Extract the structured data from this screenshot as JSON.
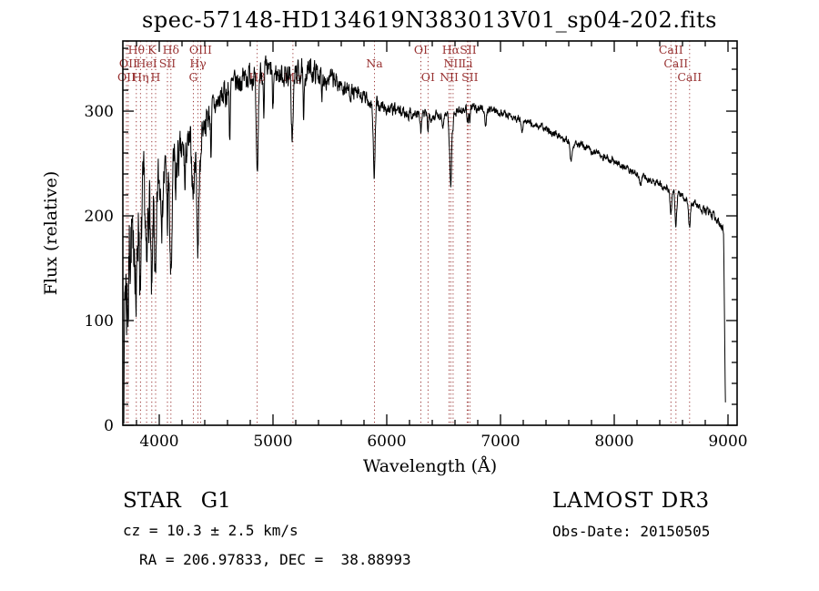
{
  "title": "spec-57148-HD134619N383013V01_sp04-202.fits",
  "footer": {
    "classification": "STAR   G1",
    "cz": "cz = 10.3 ± 2.5 km/s",
    "radec": "RA = 206.97833, DEC =  38.88993",
    "survey": "LAMOST DR3",
    "obs_date": "Obs-Date: 20150505"
  },
  "chart_data": {
    "type": "line",
    "title": "spec-57148-HD134619N383013V01_sp04-202.fits",
    "xlabel": "Wavelength (Å)",
    "ylabel": "Flux (relative)",
    "xlim": [
      3680,
      9080
    ],
    "ylim": [
      0,
      367
    ],
    "x_start": 3686,
    "x_end": 8980,
    "x_ticks": [
      4000,
      5000,
      6000,
      7000,
      8000,
      9000
    ],
    "y_ticks": [
      0,
      100,
      200,
      300
    ],
    "x_minor_step": 200,
    "y_minor_step": 20,
    "grid": false,
    "legend": "none",
    "line_color": "#000000",
    "marker_color": "#993333",
    "continuum": [
      [
        3686,
        4
      ],
      [
        3690,
        40
      ],
      [
        3696,
        120
      ],
      [
        3705,
        160
      ],
      [
        3725,
        172
      ],
      [
        3760,
        183
      ],
      [
        3800,
        196
      ],
      [
        3850,
        207
      ],
      [
        3900,
        220
      ],
      [
        3950,
        227
      ],
      [
        4000,
        233
      ],
      [
        4060,
        240
      ],
      [
        4120,
        248
      ],
      [
        4180,
        256
      ],
      [
        4240,
        263
      ],
      [
        4300,
        271
      ],
      [
        4360,
        281
      ],
      [
        4420,
        293
      ],
      [
        4480,
        303
      ],
      [
        4540,
        312
      ],
      [
        4600,
        319
      ],
      [
        4660,
        325
      ],
      [
        4720,
        330
      ],
      [
        4780,
        334
      ],
      [
        4840,
        337
      ],
      [
        4900,
        339
      ],
      [
        4960,
        338
      ],
      [
        5020,
        336
      ],
      [
        5080,
        335
      ],
      [
        5140,
        335
      ],
      [
        5200,
        336
      ],
      [
        5260,
        338
      ],
      [
        5320,
        339
      ],
      [
        5380,
        337
      ],
      [
        5440,
        334
      ],
      [
        5500,
        331
      ],
      [
        5560,
        327
      ],
      [
        5620,
        323
      ],
      [
        5680,
        319
      ],
      [
        5740,
        315
      ],
      [
        5800,
        312
      ],
      [
        5860,
        309
      ],
      [
        5920,
        306
      ],
      [
        5980,
        303
      ],
      [
        6050,
        301
      ],
      [
        6150,
        299
      ],
      [
        6250,
        297
      ],
      [
        6350,
        296
      ],
      [
        6450,
        296
      ],
      [
        6550,
        298
      ],
      [
        6650,
        301
      ],
      [
        6750,
        303
      ],
      [
        6850,
        303
      ],
      [
        6950,
        301
      ],
      [
        7050,
        297
      ],
      [
        7150,
        293
      ],
      [
        7250,
        289
      ],
      [
        7350,
        285
      ],
      [
        7450,
        280
      ],
      [
        7550,
        275
      ],
      [
        7650,
        270
      ],
      [
        7750,
        265
      ],
      [
        7850,
        260
      ],
      [
        7950,
        255
      ],
      [
        8050,
        249
      ],
      [
        8150,
        244
      ],
      [
        8250,
        238
      ],
      [
        8350,
        232
      ],
      [
        8450,
        227
      ],
      [
        8550,
        221
      ],
      [
        8650,
        215
      ],
      [
        8750,
        208
      ],
      [
        8850,
        201
      ],
      [
        8900,
        197
      ],
      [
        8940,
        192
      ],
      [
        8962,
        184
      ],
      [
        8970,
        95
      ],
      [
        8976,
        30
      ],
      [
        8980,
        6
      ]
    ],
    "noise_amp": [
      [
        3688,
        40
      ],
      [
        3760,
        36
      ],
      [
        3850,
        30
      ],
      [
        3950,
        25
      ],
      [
        4050,
        20
      ],
      [
        4200,
        15
      ],
      [
        4400,
        11
      ],
      [
        4700,
        10
      ],
      [
        5000,
        9
      ],
      [
        5300,
        9
      ],
      [
        5600,
        7
      ],
      [
        5900,
        5.5
      ],
      [
        6200,
        4.5
      ],
      [
        6600,
        3.5
      ],
      [
        7000,
        3
      ],
      [
        7600,
        2.8
      ],
      [
        8200,
        2.8
      ],
      [
        8800,
        3.2
      ],
      [
        8980,
        3.5
      ]
    ],
    "absorption_lines": [
      [
        3712,
        45,
        5
      ],
      [
        3727,
        55,
        5
      ],
      [
        3770,
        60,
        4
      ],
      [
        3798,
        85,
        6
      ],
      [
        3835,
        90,
        6
      ],
      [
        3889,
        85,
        7
      ],
      [
        3934,
        115,
        8
      ],
      [
        3968,
        105,
        8
      ],
      [
        4026,
        40,
        4
      ],
      [
        4072,
        45,
        5
      ],
      [
        4102,
        110,
        9
      ],
      [
        4144,
        35,
        4
      ],
      [
        4227,
        40,
        4
      ],
      [
        4300,
        50,
        10
      ],
      [
        4340,
        110,
        9
      ],
      [
        4363,
        35,
        5
      ],
      [
        4455,
        35,
        4
      ],
      [
        4620,
        45,
        4
      ],
      [
        4861,
        105,
        9
      ],
      [
        4920,
        55,
        4
      ],
      [
        5000,
        45,
        4
      ],
      [
        5170,
        60,
        9
      ],
      [
        5270,
        55,
        5
      ],
      [
        5430,
        30,
        4
      ],
      [
        5890,
        70,
        8
      ],
      [
        6300,
        18,
        5
      ],
      [
        6363,
        12,
        5
      ],
      [
        6495,
        15,
        4
      ],
      [
        6548,
        14,
        4
      ],
      [
        6563,
        70,
        8
      ],
      [
        6583,
        14,
        4
      ],
      [
        6707,
        10,
        4
      ],
      [
        6716,
        12,
        4
      ],
      [
        6731,
        12,
        4
      ],
      [
        6870,
        18,
        7
      ],
      [
        7190,
        12,
        8
      ],
      [
        7620,
        18,
        9
      ],
      [
        8230,
        12,
        8
      ],
      [
        8498,
        26,
        7
      ],
      [
        8542,
        30,
        7
      ],
      [
        8662,
        26,
        7
      ]
    ],
    "line_markers": [
      {
        "label": "Hθ",
        "wavelength": 3798,
        "row": 1
      },
      {
        "label": "K",
        "wavelength": 3934,
        "row": 1
      },
      {
        "label": "Hδ",
        "wavelength": 4102,
        "row": 1
      },
      {
        "label": "OIII",
        "wavelength": 4363,
        "row": 1
      },
      {
        "label": "OI",
        "wavelength": 6300,
        "row": 1
      },
      {
        "label": "Hα",
        "wavelength": 6563,
        "row": 1
      },
      {
        "label": "SII",
        "wavelength": 6716,
        "row": 1
      },
      {
        "label": "CaII",
        "wavelength": 8498,
        "row": 1
      },
      {
        "label": "OII",
        "wavelength": 3727,
        "row": 2
      },
      {
        "label": "HeI",
        "wavelength": 3889,
        "row": 2
      },
      {
        "label": "SII",
        "wavelength": 4072,
        "row": 2
      },
      {
        "label": "Hγ",
        "wavelength": 4340,
        "row": 2
      },
      {
        "label": "Na",
        "wavelength": 5892,
        "row": 2
      },
      {
        "label": "NII",
        "wavelength": 6583,
        "row": 2
      },
      {
        "label": "Li",
        "wavelength": 6707,
        "row": 2
      },
      {
        "label": "CaII",
        "wavelength": 8542,
        "row": 2
      },
      {
        "label": "OII",
        "wavelength": 3712,
        "row": 3
      },
      {
        "label": "Hη",
        "wavelength": 3835,
        "row": 3
      },
      {
        "label": "H",
        "wavelength": 3968,
        "row": 3
      },
      {
        "label": "G",
        "wavelength": 4300,
        "row": 3
      },
      {
        "label": "Hβ",
        "wavelength": 4861,
        "row": 3
      },
      {
        "label": "Mg",
        "wavelength": 5175,
        "row": 3
      },
      {
        "label": "OI",
        "wavelength": 6363,
        "row": 3
      },
      {
        "label": "NII",
        "wavelength": 6548,
        "row": 3
      },
      {
        "label": "SII",
        "wavelength": 6731,
        "row": 3
      },
      {
        "label": "CaII",
        "wavelength": 8662,
        "row": 3
      }
    ]
  }
}
